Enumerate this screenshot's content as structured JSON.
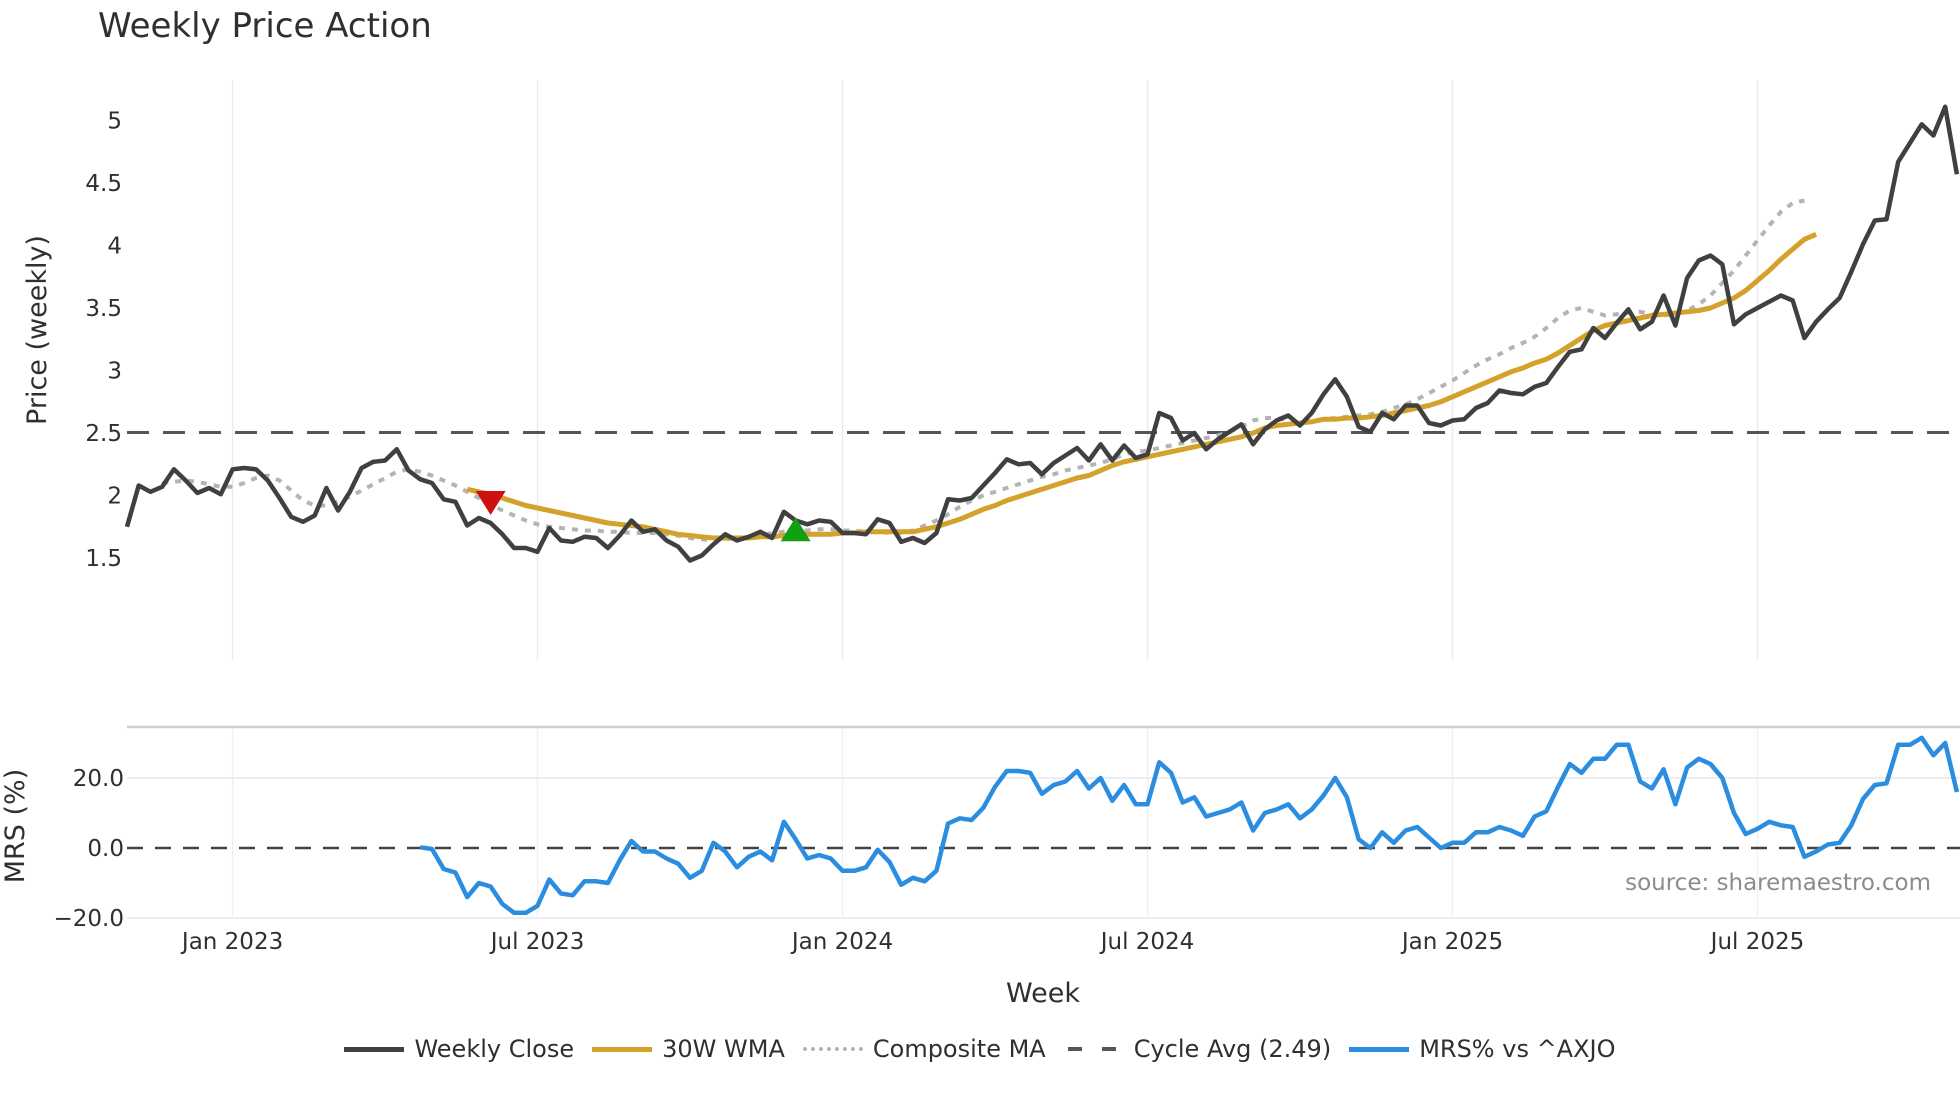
{
  "title": "Weekly Price Action",
  "source_note": "source: sharemaestro.com",
  "legend": [
    {
      "label": "Weekly Close",
      "color": "#404040",
      "style": "solid"
    },
    {
      "label": "30W WMA",
      "color": "#d4a12a",
      "style": "solid"
    },
    {
      "label": "Composite MA",
      "color": "#b4b4b4",
      "style": "dotted"
    },
    {
      "label": "Cycle Avg (2.49)",
      "color": "#555555",
      "style": "dashed"
    },
    {
      "label": "MRS% vs ^AXJO",
      "color": "#2b8de0",
      "style": "solid"
    }
  ],
  "chart_data": [
    {
      "type": "line",
      "title": "Weekly Price Action",
      "xlabel": "Week",
      "ylabel": "Price (weekly)",
      "ylim": [
        1.3,
        5.35
      ],
      "yticks": [
        1.5,
        2,
        2.5,
        3,
        3.5,
        4,
        4.5,
        5
      ],
      "ytick_labels": [
        "1.5",
        "2",
        "2.5",
        "3",
        "3.5",
        "4",
        "4.5",
        "5"
      ],
      "xticks": [
        "Jan 2023",
        "Jul 2023",
        "Jan 2024",
        "Jul 2024",
        "Jan 2025",
        "Jul 2025"
      ],
      "xtick_week_index": [
        9,
        35,
        61,
        87,
        113,
        139
      ],
      "grid": true,
      "legend_position": "bottom",
      "reference_lines": [
        {
          "name": "Cycle Avg (2.49)",
          "y": 2.49,
          "style": "dashed"
        }
      ],
      "markers": [
        {
          "type": "sell",
          "shape": "triangle-down",
          "color": "#cc1111",
          "week_index": 31,
          "y": 1.94
        },
        {
          "type": "buy",
          "shape": "triangle-up",
          "color": "#11a011",
          "week_index": 57,
          "y": 1.73
        }
      ],
      "series": [
        {
          "name": "Weekly Close",
          "start_index": 0,
          "values": [
            1.75,
            2.08,
            2.03,
            2.07,
            2.21,
            2.12,
            2.02,
            2.06,
            2.01,
            2.21,
            2.22,
            2.21,
            2.12,
            1.98,
            1.83,
            1.79,
            1.84,
            2.06,
            1.88,
            2.03,
            2.22,
            2.27,
            2.28,
            2.37,
            2.2,
            2.13,
            2.1,
            1.97,
            1.95,
            1.76,
            1.82,
            1.78,
            1.69,
            1.58,
            1.58,
            1.55,
            1.74,
            1.64,
            1.63,
            1.67,
            1.66,
            1.58,
            1.68,
            1.8,
            1.71,
            1.73,
            1.64,
            1.59,
            1.48,
            1.52,
            1.61,
            1.69,
            1.64,
            1.67,
            1.71,
            1.66,
            1.87,
            1.8,
            1.77,
            1.8,
            1.79,
            1.7,
            1.7,
            1.69,
            1.81,
            1.78,
            1.63,
            1.66,
            1.62,
            1.7,
            1.97,
            1.96,
            1.98,
            2.08,
            2.18,
            2.29,
            2.25,
            2.26,
            2.17,
            2.26,
            2.32,
            2.38,
            2.28,
            2.41,
            2.28,
            2.4,
            2.3,
            2.33,
            2.66,
            2.62,
            2.44,
            2.5,
            2.37,
            2.45,
            2.51,
            2.57,
            2.41,
            2.53,
            2.6,
            2.64,
            2.56,
            2.66,
            2.81,
            2.93,
            2.79,
            2.55,
            2.51,
            2.66,
            2.61,
            2.72,
            2.72,
            2.58,
            2.56,
            2.6,
            2.61,
            2.7,
            2.74,
            2.84,
            2.82,
            2.81,
            2.87,
            2.9,
            3.03,
            3.15,
            3.17,
            3.34,
            3.26,
            3.38,
            3.49,
            3.33,
            3.39,
            3.6,
            3.36,
            3.74,
            3.88,
            3.92,
            3.85,
            3.37,
            3.45,
            3.5,
            3.55,
            3.6,
            3.56,
            3.26,
            3.39,
            3.49,
            3.58,
            3.79,
            4.01,
            4.2,
            4.21,
            4.67,
            4.82,
            4.97,
            4.88,
            5.11,
            4.57
          ]
        },
        {
          "name": "30W WMA",
          "start_index": 29,
          "values": [
            2.05,
            2.03,
            2.01,
            1.98,
            1.95,
            1.92,
            1.9,
            1.88,
            1.86,
            1.84,
            1.82,
            1.8,
            1.78,
            1.77,
            1.76,
            1.75,
            1.73,
            1.71,
            1.69,
            1.68,
            1.67,
            1.66,
            1.66,
            1.66,
            1.66,
            1.67,
            1.67,
            1.68,
            1.68,
            1.69,
            1.69,
            1.69,
            1.7,
            1.7,
            1.71,
            1.71,
            1.71,
            1.71,
            1.71,
            1.73,
            1.75,
            1.78,
            1.81,
            1.85,
            1.89,
            1.92,
            1.96,
            1.99,
            2.02,
            2.05,
            2.08,
            2.11,
            2.14,
            2.16,
            2.2,
            2.24,
            2.27,
            2.29,
            2.31,
            2.33,
            2.35,
            2.37,
            2.39,
            2.41,
            2.43,
            2.45,
            2.47,
            2.5,
            2.54,
            2.56,
            2.57,
            2.58,
            2.59,
            2.61,
            2.61,
            2.62,
            2.62,
            2.63,
            2.64,
            2.66,
            2.68,
            2.7,
            2.72,
            2.75,
            2.79,
            2.83,
            2.87,
            2.91,
            2.95,
            2.99,
            3.02,
            3.06,
            3.09,
            3.14,
            3.2,
            3.26,
            3.32,
            3.36,
            3.38,
            3.4,
            3.42,
            3.44,
            3.45,
            3.46,
            3.47,
            3.48,
            3.5,
            3.54,
            3.58,
            3.64,
            3.72,
            3.8,
            3.89,
            3.97,
            4.05,
            4.09
          ]
        },
        {
          "name": "Composite MA",
          "start_index": 3,
          "values": [
            2.1,
            2.11,
            2.12,
            2.11,
            2.09,
            2.07,
            2.07,
            2.1,
            2.14,
            2.16,
            2.12,
            2.04,
            1.96,
            1.92,
            1.92,
            1.95,
            1.99,
            2.04,
            2.09,
            2.14,
            2.19,
            2.21,
            2.19,
            2.16,
            2.12,
            2.08,
            2.03,
            1.98,
            1.93,
            1.88,
            1.84,
            1.8,
            1.77,
            1.75,
            1.74,
            1.73,
            1.72,
            1.72,
            1.71,
            1.71,
            1.7,
            1.7,
            1.7,
            1.69,
            1.68,
            1.66,
            1.65,
            1.64,
            1.65,
            1.66,
            1.67,
            1.68,
            1.7,
            1.71,
            1.72,
            1.72,
            1.73,
            1.73,
            1.72,
            1.72,
            1.71,
            1.71,
            1.7,
            1.7,
            1.72,
            1.76,
            1.8,
            1.85,
            1.91,
            1.96,
            2.0,
            2.03,
            2.06,
            2.09,
            2.12,
            2.15,
            2.17,
            2.2,
            2.22,
            2.24,
            2.26,
            2.29,
            2.33,
            2.35,
            2.36,
            2.38,
            2.4,
            2.42,
            2.44,
            2.46,
            2.48,
            2.51,
            2.55,
            2.6,
            2.62,
            2.62,
            2.6,
            2.59,
            2.6,
            2.61,
            2.62,
            2.63,
            2.64,
            2.65,
            2.67,
            2.7,
            2.73,
            2.77,
            2.82,
            2.87,
            2.92,
            2.98,
            3.04,
            3.09,
            3.13,
            3.18,
            3.22,
            3.27,
            3.34,
            3.42,
            3.48,
            3.5,
            3.47,
            3.44,
            3.45,
            3.46,
            3.47,
            3.45,
            3.44,
            3.45,
            3.48,
            3.53,
            3.6,
            3.7,
            3.8,
            3.92,
            4.04,
            4.16,
            4.27,
            4.34,
            4.36
          ]
        }
      ]
    },
    {
      "type": "line",
      "ylabel": "MRS (%)",
      "xlabel": "Week",
      "ylim": [
        -21,
        31
      ],
      "yticks": [
        -20,
        0,
        20
      ],
      "ytick_labels": [
        "−20.0",
        "0.0",
        "20.0"
      ],
      "reference_lines": [
        {
          "y": 0,
          "style": "dashed"
        }
      ],
      "series": [
        {
          "name": "MRS% vs ^AXJO",
          "start_index": 25,
          "values": [
            0.2,
            -0.3,
            -6.0,
            -7.0,
            -14.0,
            -10.0,
            -11.0,
            -16.0,
            -18.5,
            -18.5,
            -16.5,
            -9.0,
            -13.0,
            -13.5,
            -9.5,
            -9.5,
            -10.0,
            -3.5,
            2.0,
            -1.0,
            -1.0,
            -3.0,
            -4.5,
            -8.5,
            -6.5,
            1.5,
            -1.0,
            -5.5,
            -2.5,
            -1.0,
            -3.5,
            7.5,
            2.5,
            -3.0,
            -2.0,
            -3.0,
            -6.5,
            -6.5,
            -5.5,
            -0.5,
            -4.0,
            -10.5,
            -8.5,
            -9.5,
            -6.5,
            7.0,
            8.5,
            8.0,
            11.5,
            17.5,
            22.0,
            22.0,
            21.5,
            15.5,
            18.0,
            19.0,
            22.0,
            17.0,
            20.0,
            13.5,
            18.0,
            12.5,
            12.5,
            24.5,
            21.5,
            13.0,
            14.5,
            9.0,
            10.0,
            11.0,
            13.0,
            5.0,
            10.0,
            11.0,
            12.5,
            8.5,
            11.0,
            15.0,
            20.0,
            14.5,
            2.5,
            0.0,
            4.5,
            1.5,
            5.0,
            6.0,
            3.0,
            0.0,
            1.5,
            1.5,
            4.5,
            4.5,
            6.0,
            5.0,
            3.5,
            9.0,
            10.5,
            17.5,
            24.0,
            21.5,
            25.5,
            25.5,
            29.5,
            29.5,
            19.0,
            17.0,
            22.5,
            12.5,
            23.0,
            25.5,
            24.0,
            20.0,
            10.0,
            4.0,
            5.5,
            7.5,
            6.5,
            6.0,
            -2.5,
            -1.0,
            1.0,
            1.5,
            6.5,
            14.0,
            18.0,
            18.5,
            29.5,
            29.5,
            31.5,
            26.5,
            30.0,
            16.0
          ]
        }
      ]
    }
  ]
}
